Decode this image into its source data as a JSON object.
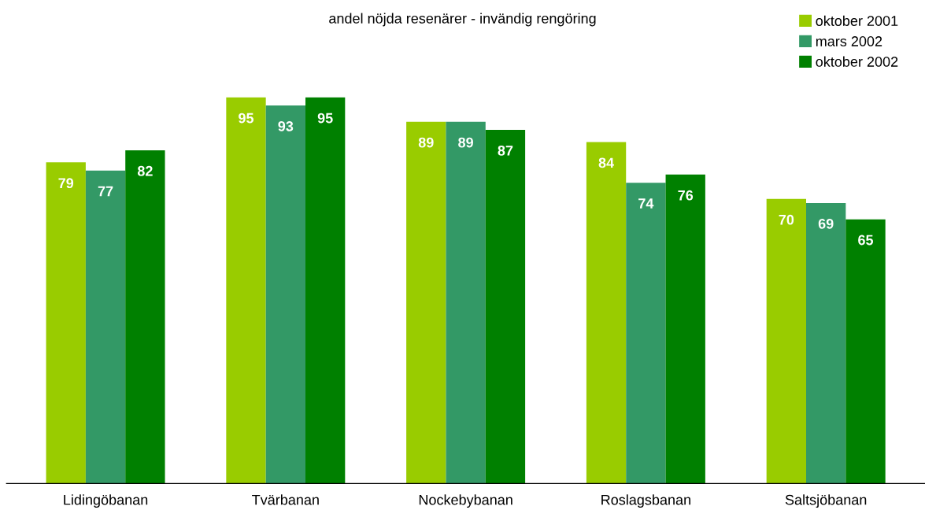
{
  "chart_data": {
    "type": "bar",
    "title": "andel nöjda resenärer - invändig rengöring",
    "categories": [
      "Lidingöbanan",
      "Tvärbanan",
      "Nockebybanan",
      "Roslagsbanan",
      "Saltsjöbanan"
    ],
    "series": [
      {
        "name": "oktober 2001",
        "color": "#99cc00",
        "values": [
          79,
          95,
          89,
          84,
          70
        ]
      },
      {
        "name": "mars 2002",
        "color": "#339966",
        "values": [
          77,
          93,
          89,
          74,
          69
        ]
      },
      {
        "name": "oktober 2002",
        "color": "#008000",
        "values": [
          82,
          95,
          87,
          76,
          65
        ]
      }
    ],
    "data_labels": true,
    "legend": "top right",
    "grid": false
  }
}
